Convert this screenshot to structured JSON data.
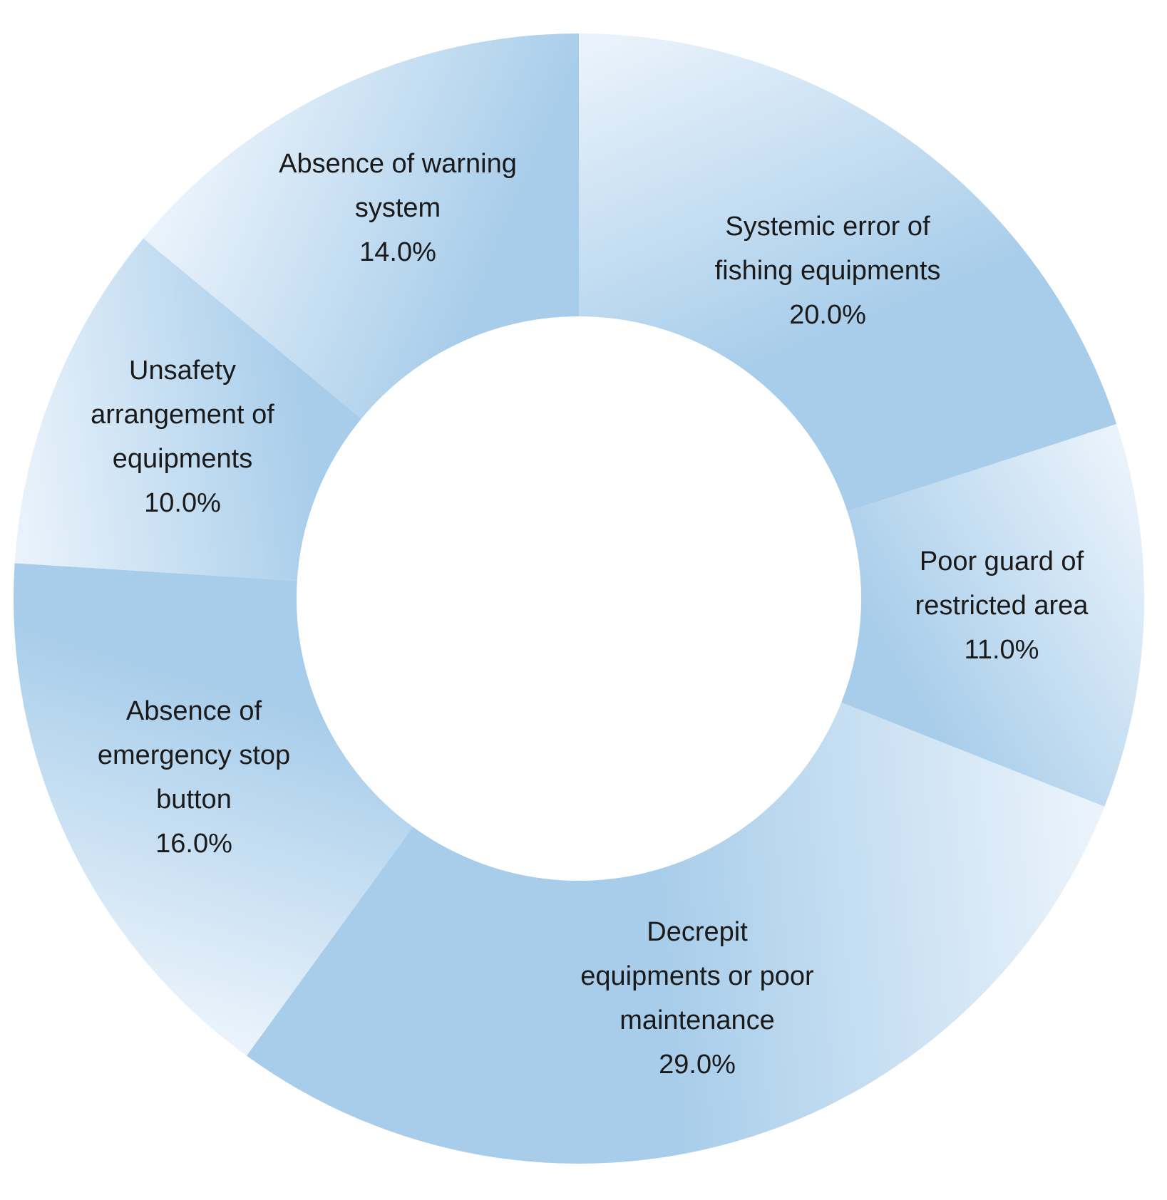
{
  "chart_data": {
    "type": "pie",
    "variant": "donut",
    "start_angle": "12 o'clock",
    "direction": "clockwise",
    "legend": "none",
    "slices": [
      {
        "label": [
          "Systemic error of",
          "fishing equipments"
        ],
        "value": 20.0,
        "value_label": "20.0%"
      },
      {
        "label": [
          "Poor guard of",
          "restricted area"
        ],
        "value": 11.0,
        "value_label": "11.0%"
      },
      {
        "label": [
          "Decrepit",
          "equipments or poor",
          "maintenance"
        ],
        "value": 29.0,
        "value_label": "29.0%"
      },
      {
        "label": [
          "Absence of",
          "emergency stop",
          "button"
        ],
        "value": 16.0,
        "value_label": "16.0%"
      },
      {
        "label": [
          "Unsafety",
          "arrangement of",
          "equipments"
        ],
        "value": 10.0,
        "value_label": "10.0%"
      },
      {
        "label": [
          "Absence of warning",
          "system"
        ],
        "value": 14.0,
        "value_label": "14.0%"
      }
    ],
    "colors": {
      "light": "#eaf3fb",
      "dark": "#a8cdea"
    }
  }
}
